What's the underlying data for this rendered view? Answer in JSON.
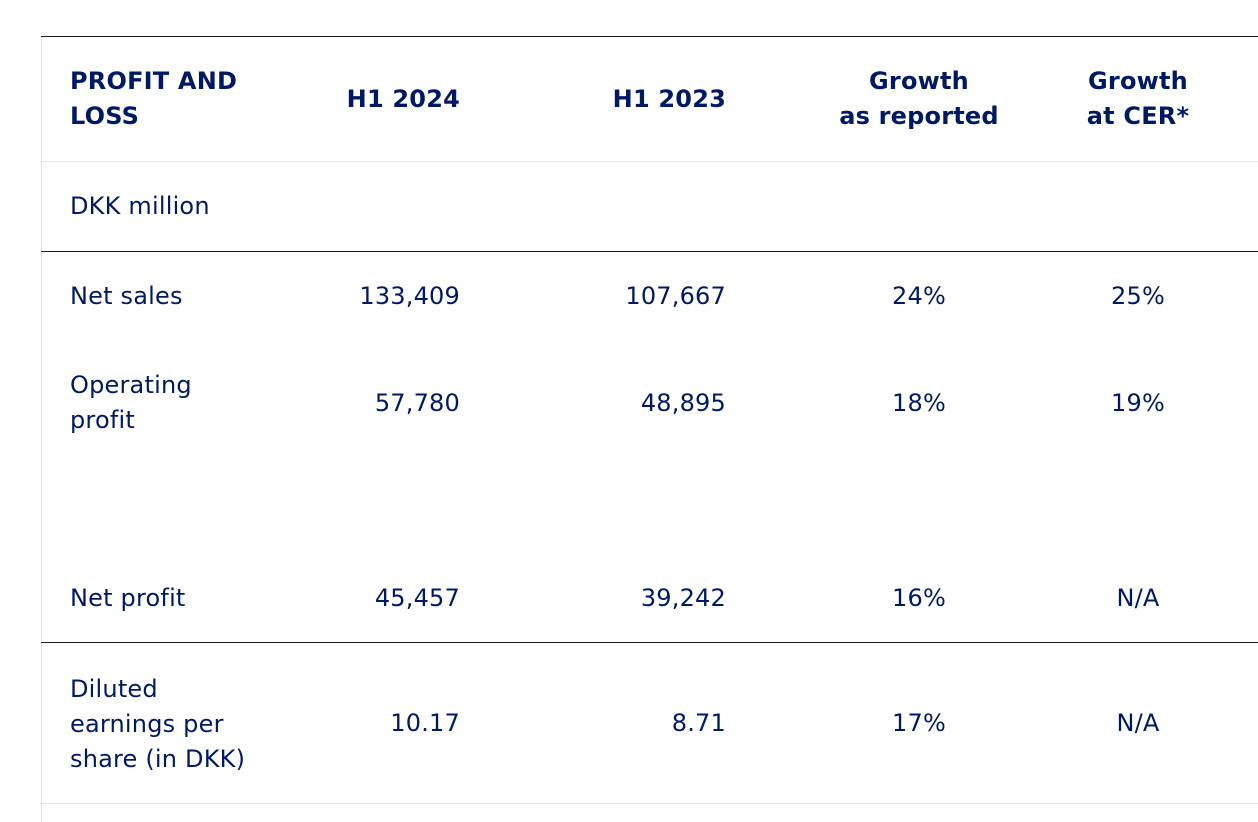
{
  "table": {
    "headers": {
      "label_line1": "PROFIT AND",
      "label_line2": "LOSS",
      "col_h1_2024": "H1 2024",
      "col_h1_2023": "H1 2023",
      "col_growth_reported_line1": "Growth",
      "col_growth_reported_line2": "as reported",
      "col_growth_cer_line1": "Growth",
      "col_growth_cer_line2": "at CER*"
    },
    "unit_label": "DKK million",
    "rows": [
      {
        "label_line1": "Net sales",
        "label_line2": "",
        "label_line3": "",
        "h1_2024": "133,409",
        "h1_2023": "107,667",
        "growth_reported": "24%",
        "growth_cer": "25%"
      },
      {
        "label_line1": "Operating",
        "label_line2": "profit",
        "label_line3": "",
        "h1_2024": "57,780",
        "h1_2023": "48,895",
        "growth_reported": "18%",
        "growth_cer": "19%"
      },
      {
        "label_line1": "Net profit",
        "label_line2": "",
        "label_line3": "",
        "h1_2024": "45,457",
        "h1_2023": "39,242",
        "growth_reported": "16%",
        "growth_cer": "N/A"
      },
      {
        "label_line1": "Diluted",
        "label_line2": "earnings per",
        "label_line3": "share (in DKK)",
        "h1_2024": "10.17",
        "h1_2023": "8.71",
        "growth_reported": "17%",
        "growth_cer": "N/A"
      }
    ]
  },
  "colors": {
    "text": "#001965",
    "rule_dark": "#1b1b1b",
    "rule_light": "#e6e6e6"
  }
}
